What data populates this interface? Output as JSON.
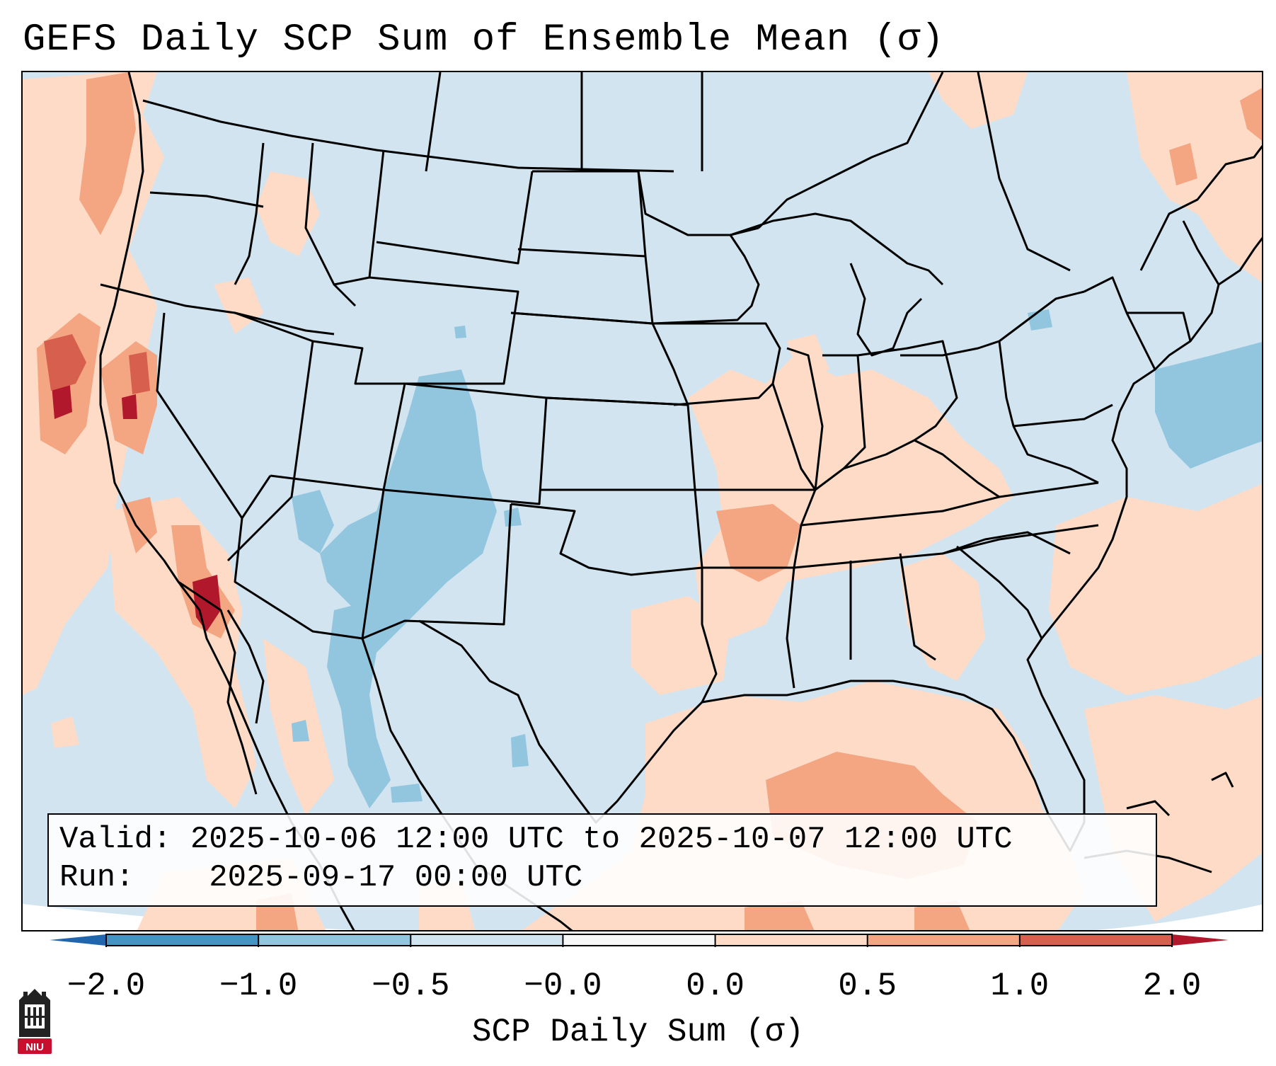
{
  "title": "GEFS Daily SCP Sum of Ensemble Mean (σ)",
  "info": {
    "valid_label": "Valid:",
    "valid_value": "2025-10-06 12:00 UTC to 2025-10-07 12:00 UTC",
    "run_label": "Run:",
    "run_value": "2025-09-17 00:00 UTC"
  },
  "colorbar": {
    "label": "SCP Daily Sum (σ)",
    "ticks": [
      "−2.0",
      "−1.0",
      "−0.5",
      "−0.0",
      "0.0",
      "0.5",
      "1.0",
      "2.0"
    ],
    "bins": [
      {
        "from": -2.0,
        "to": -1.0,
        "color": "#4393c3"
      },
      {
        "from": -1.0,
        "to": -0.5,
        "color": "#92c5de"
      },
      {
        "from": -0.5,
        "to": -0.0,
        "color": "#d1e5f0"
      },
      {
        "from": -0.0,
        "to": 0.0,
        "color": "#f7f7f7"
      },
      {
        "from": 0.0,
        "to": 0.5,
        "color": "#fddbc7"
      },
      {
        "from": 0.5,
        "to": 1.0,
        "color": "#f4a582"
      },
      {
        "from": 1.0,
        "to": 2.0,
        "color": "#d6604d"
      }
    ],
    "under_color": "#2166ac",
    "over_color": "#b2182b"
  },
  "map": {
    "background_color": "#d1e4f0",
    "outline_color": "#000000"
  },
  "logo": {
    "text": "NIU",
    "color": "#c8102e"
  }
}
